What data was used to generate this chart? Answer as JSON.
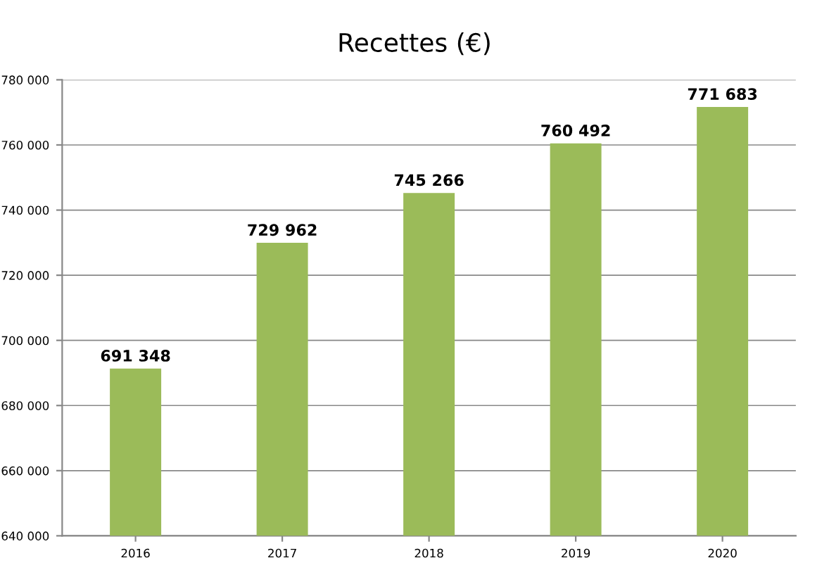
{
  "chart_data": {
    "type": "bar",
    "title": "Recettes (€)",
    "categories": [
      "2016",
      "2017",
      "2018",
      "2019",
      "2020"
    ],
    "values": [
      691348,
      729962,
      745266,
      760492,
      771683
    ],
    "value_labels": [
      "691 348",
      "729 962",
      "745 266",
      "760 492",
      "771 683"
    ],
    "color": "#9bbb59",
    "ylim": [
      640000,
      780000
    ],
    "yticks": [
      {
        "value": 640000,
        "label": "640 000"
      },
      {
        "value": 660000,
        "label": "660 000"
      },
      {
        "value": 680000,
        "label": "680 000"
      },
      {
        "value": 700000,
        "label": "700 000"
      },
      {
        "value": 720000,
        "label": "720 000"
      },
      {
        "value": 740000,
        "label": "740 000"
      },
      {
        "value": 760000,
        "label": "760 000"
      },
      {
        "value": 780000,
        "label": "780 000"
      }
    ],
    "grid": "y",
    "legend": false
  }
}
